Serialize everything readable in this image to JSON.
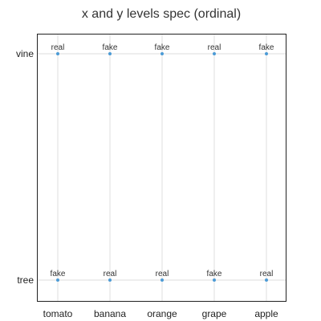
{
  "chart_data": {
    "type": "scatter",
    "title": "x and y levels spec (ordinal)",
    "xlabel": "",
    "ylabel": "",
    "x_categories": [
      "tomato",
      "banana",
      "orange",
      "grape",
      "apple"
    ],
    "y_categories": [
      "tree",
      "vine"
    ],
    "grid": true,
    "legend": "none",
    "point_color": "#4c9bd6",
    "points": [
      {
        "x": "tomato",
        "y": "vine",
        "label": "real"
      },
      {
        "x": "banana",
        "y": "vine",
        "label": "fake"
      },
      {
        "x": "orange",
        "y": "vine",
        "label": "fake"
      },
      {
        "x": "grape",
        "y": "vine",
        "label": "real"
      },
      {
        "x": "apple",
        "y": "vine",
        "label": "fake"
      },
      {
        "x": "tomato",
        "y": "tree",
        "label": "fake"
      },
      {
        "x": "banana",
        "y": "tree",
        "label": "real"
      },
      {
        "x": "orange",
        "y": "tree",
        "label": "real"
      },
      {
        "x": "grape",
        "y": "tree",
        "label": "fake"
      },
      {
        "x": "apple",
        "y": "tree",
        "label": "real"
      }
    ]
  }
}
